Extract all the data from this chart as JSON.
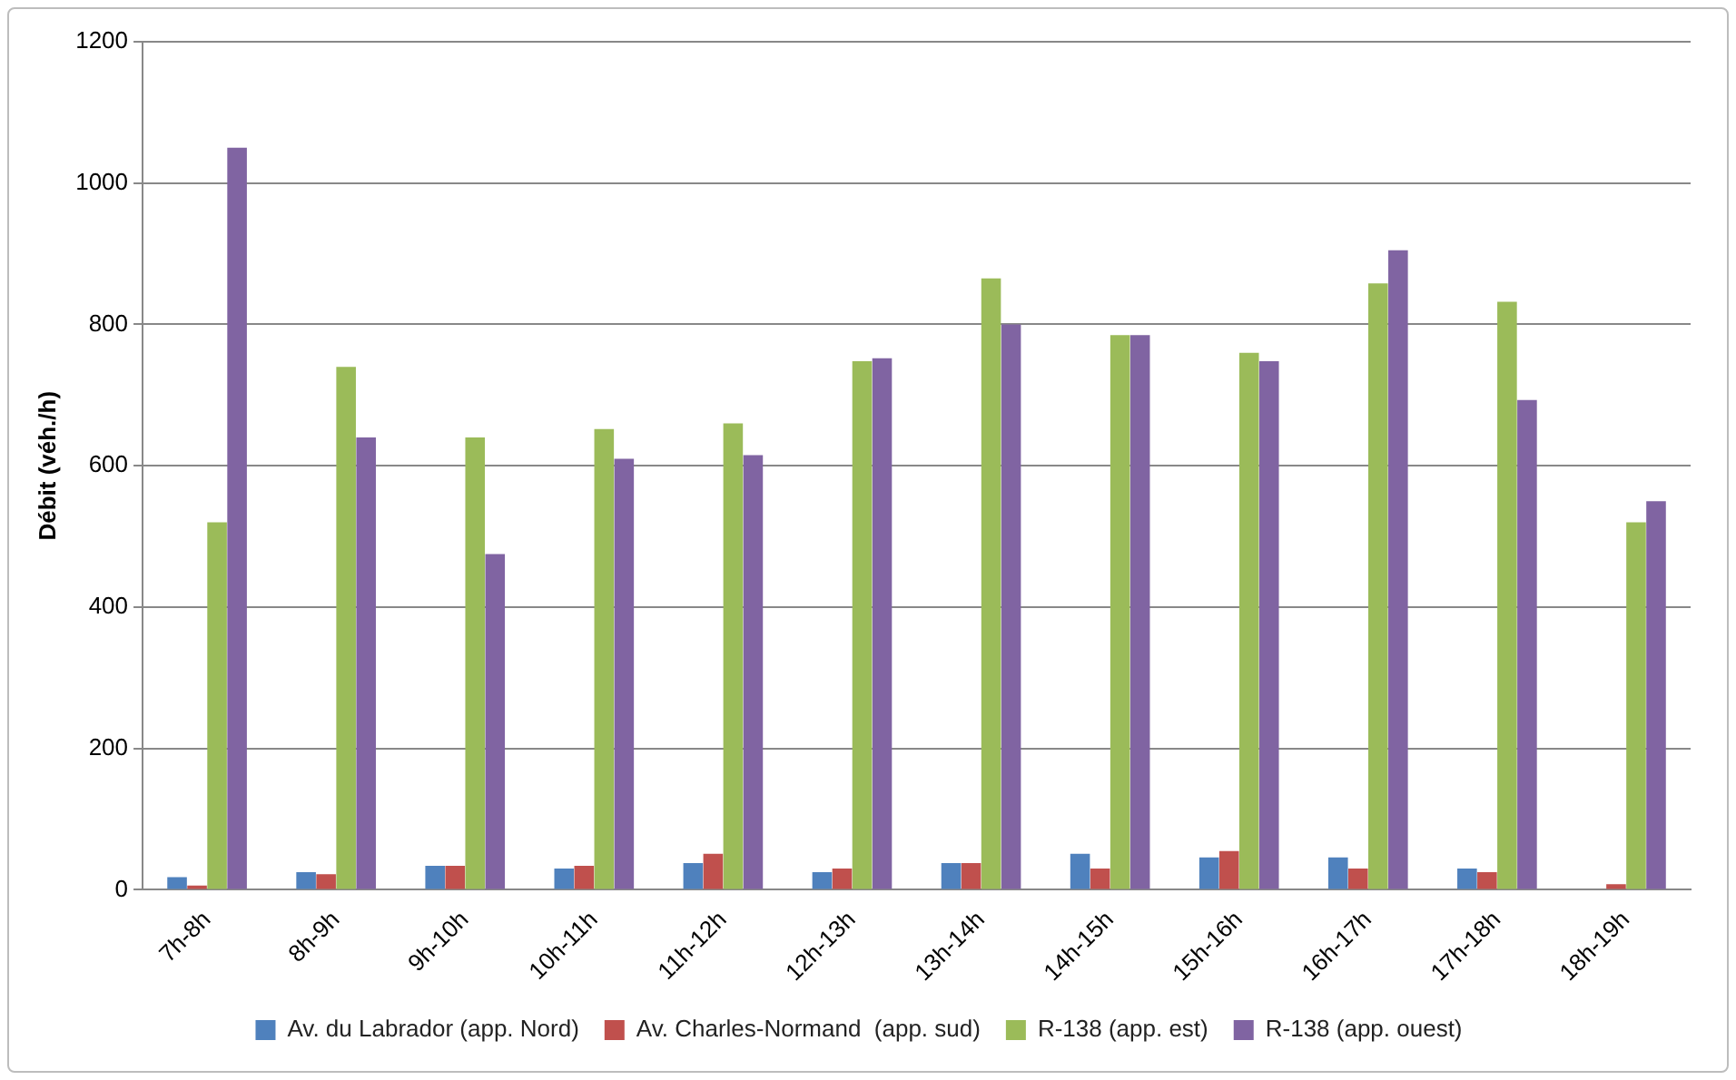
{
  "chart_data": {
    "type": "bar",
    "ylabel": "Débit (véh./h)",
    "categories": [
      "7h-8h",
      "8h-9h",
      "9h-10h",
      "10h-11h",
      "11h-12h",
      "12h-13h",
      "13h-14h",
      "14h-15h",
      "15h-16h",
      "16h-17h",
      "17h-18h",
      "18h-19h"
    ],
    "series": [
      {
        "name": "Av. du Labrador (app. Nord)",
        "color": "#4f81bd",
        "values": [
          18,
          25,
          34,
          30,
          38,
          25,
          38,
          51,
          46,
          46,
          30,
          0
        ]
      },
      {
        "name": "Av. Charles-Normand  (app. sud)",
        "color": "#c0504d",
        "values": [
          6,
          22,
          34,
          34,
          51,
          30,
          38,
          30,
          55,
          30,
          25,
          8
        ]
      },
      {
        "name": "R-138 (app. est)",
        "color": "#9bbb59",
        "values": [
          520,
          740,
          640,
          652,
          660,
          748,
          865,
          785,
          760,
          858,
          832,
          520
        ]
      },
      {
        "name": "R-138 (app. ouest)",
        "color": "#8064a2",
        "values": [
          1050,
          640,
          475,
          610,
          615,
          752,
          800,
          785,
          748,
          905,
          693,
          550
        ]
      }
    ],
    "ylim": [
      0,
      1200
    ],
    "yticks": [
      0,
      200,
      400,
      600,
      800,
      1000,
      1200
    ],
    "grid": "y",
    "legend": "bottom"
  }
}
